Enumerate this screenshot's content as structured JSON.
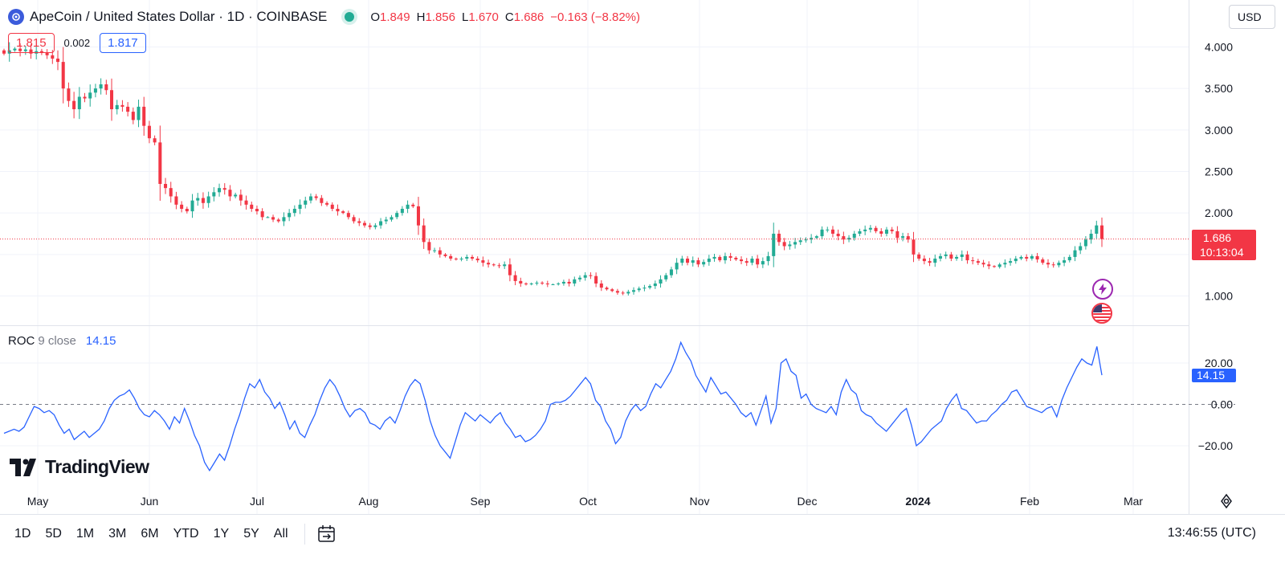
{
  "header": {
    "title": "ApeCoin / United States Dollar · 1D · COINBASE",
    "ohlc": [
      {
        "key": "O",
        "value": "1.849"
      },
      {
        "key": "H",
        "value": "1.856"
      },
      {
        "key": "L",
        "value": "1.670"
      },
      {
        "key": "C",
        "value": "1.686"
      }
    ],
    "change": "−0.163 (−8.82%)",
    "bid": "1.815",
    "spread": "0.002",
    "ask": "1.817",
    "currency": "USD"
  },
  "indicator": {
    "name": "ROC",
    "params": "9 close",
    "value": "14.15"
  },
  "price_label": {
    "price": "1.686",
    "countdown": "10:13:04"
  },
  "roc_label": "14.15",
  "brand": "TradingView",
  "ranges": [
    "1D",
    "5D",
    "1M",
    "3M",
    "6M",
    "YTD",
    "1Y",
    "5Y",
    "All"
  ],
  "clock": "13:46:55 (UTC)",
  "icons": [
    "ape-coin-icon",
    "market-open-dot-icon",
    "lightning-icon",
    "us-flag-icon",
    "settings-icon",
    "calendar-range-icon"
  ],
  "colors": {
    "up": "#22ab94",
    "down": "#f23645",
    "roc": "#2962ff"
  },
  "chart_data": [
    {
      "type": "candlestick",
      "y_ticks": [
        "4.000",
        "3.500",
        "3.000",
        "2.500",
        "2.000",
        "1.000"
      ],
      "x_ticks": [
        "May",
        "Jun",
        "Jul",
        "Aug",
        "Sep",
        "Oct",
        "Nov",
        "Dec",
        "2024",
        "Feb",
        "Mar"
      ],
      "ylim": [
        0.7,
        4.3
      ],
      "last_price": 1.686,
      "closes": [
        3.92,
        3.96,
        3.98,
        3.95,
        3.97,
        3.92,
        3.95,
        3.93,
        3.9,
        3.86,
        3.82,
        3.5,
        3.35,
        3.25,
        3.4,
        3.38,
        3.45,
        3.5,
        3.55,
        3.48,
        3.25,
        3.3,
        3.28,
        3.22,
        3.12,
        3.28,
        3.05,
        2.9,
        2.85,
        2.35,
        2.3,
        2.2,
        2.1,
        2.05,
        2.02,
        2.15,
        2.18,
        2.12,
        2.2,
        2.25,
        2.3,
        2.28,
        2.2,
        2.22,
        2.15,
        2.1,
        2.05,
        2.02,
        1.95,
        1.95,
        1.92,
        1.9,
        1.95,
        2.0,
        2.05,
        2.1,
        2.15,
        2.2,
        2.18,
        2.12,
        2.1,
        2.05,
        2.02,
        2.0,
        1.95,
        1.9,
        1.88,
        1.85,
        1.83,
        1.85,
        1.9,
        1.92,
        1.95,
        2.0,
        2.05,
        2.1,
        2.08,
        1.85,
        1.65,
        1.55,
        1.55,
        1.5,
        1.48,
        1.45,
        1.44,
        1.45,
        1.47,
        1.45,
        1.43,
        1.4,
        1.38,
        1.37,
        1.36,
        1.38,
        1.25,
        1.18,
        1.15,
        1.14,
        1.15,
        1.16,
        1.15,
        1.14,
        1.14,
        1.15,
        1.17,
        1.15,
        1.2,
        1.22,
        1.25,
        1.24,
        1.15,
        1.1,
        1.08,
        1.06,
        1.04,
        1.03,
        1.05,
        1.07,
        1.09,
        1.1,
        1.12,
        1.15,
        1.2,
        1.25,
        1.32,
        1.4,
        1.45,
        1.4,
        1.43,
        1.38,
        1.41,
        1.45,
        1.47,
        1.43,
        1.48,
        1.46,
        1.44,
        1.42,
        1.4,
        1.45,
        1.38,
        1.42,
        1.48,
        1.75,
        1.65,
        1.6,
        1.62,
        1.65,
        1.67,
        1.68,
        1.7,
        1.72,
        1.8,
        1.8,
        1.75,
        1.72,
        1.68,
        1.7,
        1.75,
        1.78,
        1.8,
        1.82,
        1.78,
        1.75,
        1.8,
        1.78,
        1.7,
        1.72,
        1.68,
        1.5,
        1.45,
        1.42,
        1.4,
        1.45,
        1.48,
        1.5,
        1.45,
        1.47,
        1.5,
        1.43,
        1.42,
        1.4,
        1.38,
        1.36,
        1.35,
        1.38,
        1.4,
        1.42,
        1.45,
        1.47,
        1.45,
        1.48,
        1.44,
        1.4,
        1.38,
        1.37,
        1.4,
        1.43,
        1.47,
        1.55,
        1.6,
        1.68,
        1.75,
        1.85,
        1.686
      ]
    },
    {
      "type": "line",
      "name": "ROC",
      "y_ticks": [
        "20.00",
        "0.00",
        "−20.00"
      ],
      "ylim": [
        -35,
        33
      ],
      "values": [
        -14,
        -13,
        -12,
        -13,
        -11,
        -6,
        -1,
        -2,
        -4,
        -3,
        -5,
        -10,
        -14,
        -12,
        -17,
        -15,
        -13,
        -16,
        -14,
        -12,
        -8,
        -2,
        2,
        4,
        5,
        7,
        3,
        -2,
        -5,
        -6,
        -3,
        -5,
        -8,
        -12,
        -6,
        -9,
        -2,
        -8,
        -15,
        -20,
        -28,
        -32,
        -28,
        -24,
        -27,
        -20,
        -12,
        -5,
        3,
        10,
        8,
        12,
        6,
        3,
        -2,
        1,
        -5,
        -12,
        -8,
        -14,
        -16,
        -10,
        -5,
        2,
        8,
        12,
        9,
        4,
        -2,
        -6,
        -3,
        -2,
        -4,
        -9,
        -10,
        -12,
        -8,
        -6,
        -9,
        -3,
        4,
        9,
        12,
        10,
        2,
        -8,
        -15,
        -20,
        -23,
        -26,
        -18,
        -10,
        -4,
        -6,
        -8,
        -5,
        -7,
        -9,
        -6,
        -4,
        -9,
        -12,
        -16,
        -15,
        -18,
        -17,
        -15,
        -12,
        -8,
        0,
        1,
        1,
        2,
        4,
        7,
        10,
        13,
        10,
        2,
        -1,
        -8,
        -12,
        -19,
        -16,
        -8,
        -3,
        0,
        -3,
        -1,
        5,
        10,
        8,
        12,
        16,
        22,
        30,
        25,
        21,
        14,
        10,
        6,
        13,
        9,
        5,
        6,
        3,
        0,
        -4,
        -6,
        -4,
        -10,
        -3,
        4,
        -9,
        -2,
        20,
        22,
        16,
        14,
        3,
        5,
        0,
        -2,
        -3,
        -4,
        -1,
        -5,
        6,
        12,
        7,
        5,
        -3,
        -5,
        -6,
        -9,
        -11,
        -13,
        -10,
        -7,
        -4,
        -2,
        -10,
        -20,
        -18,
        -15,
        -12,
        -10,
        -8,
        -2,
        2,
        5,
        -2,
        -3,
        -6,
        -9,
        -8,
        -8,
        -5,
        -3,
        0,
        2,
        6,
        7,
        3,
        -1,
        -2,
        -3,
        -4,
        -2,
        -1,
        -6,
        2,
        8,
        13,
        18,
        22,
        20,
        19,
        28,
        14.15
      ]
    }
  ]
}
